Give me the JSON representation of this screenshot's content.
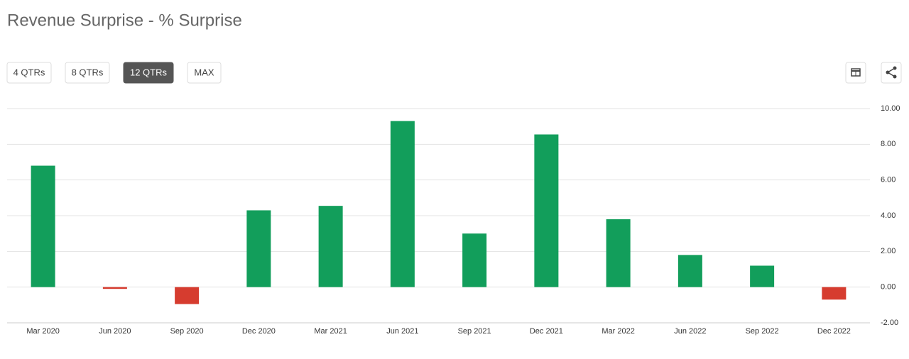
{
  "chart_data": {
    "type": "bar",
    "title": "Revenue Surprise - % Surprise",
    "controls": [
      {
        "label": "4 QTRs",
        "active": false
      },
      {
        "label": "8 QTRs",
        "active": false
      },
      {
        "label": "12 QTRs",
        "active": true
      },
      {
        "label": "MAX",
        "active": false
      }
    ],
    "categories": [
      "Mar 2020",
      "Jun 2020",
      "Sep 2020",
      "Dec 2020",
      "Mar 2021",
      "Jun 2021",
      "Sep 2021",
      "Dec 2021",
      "Mar 2022",
      "Jun 2022",
      "Sep 2022",
      "Dec 2022"
    ],
    "values": [
      6.8,
      -0.1,
      -0.95,
      4.3,
      4.55,
      9.3,
      3.0,
      8.55,
      3.8,
      1.8,
      1.2,
      -0.7
    ],
    "positive_color": "#129e5b",
    "negative_color": "#d63c2f",
    "ylim": [
      -2,
      10
    ],
    "yticks": [
      {
        "value": -2,
        "label": "-2.00"
      },
      {
        "value": 0,
        "label": "0.00"
      },
      {
        "value": 2,
        "label": "2.00"
      },
      {
        "value": 4,
        "label": "4.00"
      },
      {
        "value": 6,
        "label": "6.00"
      },
      {
        "value": 8,
        "label": "8.00"
      },
      {
        "value": 10,
        "label": "10.00"
      }
    ],
    "grid": true
  }
}
